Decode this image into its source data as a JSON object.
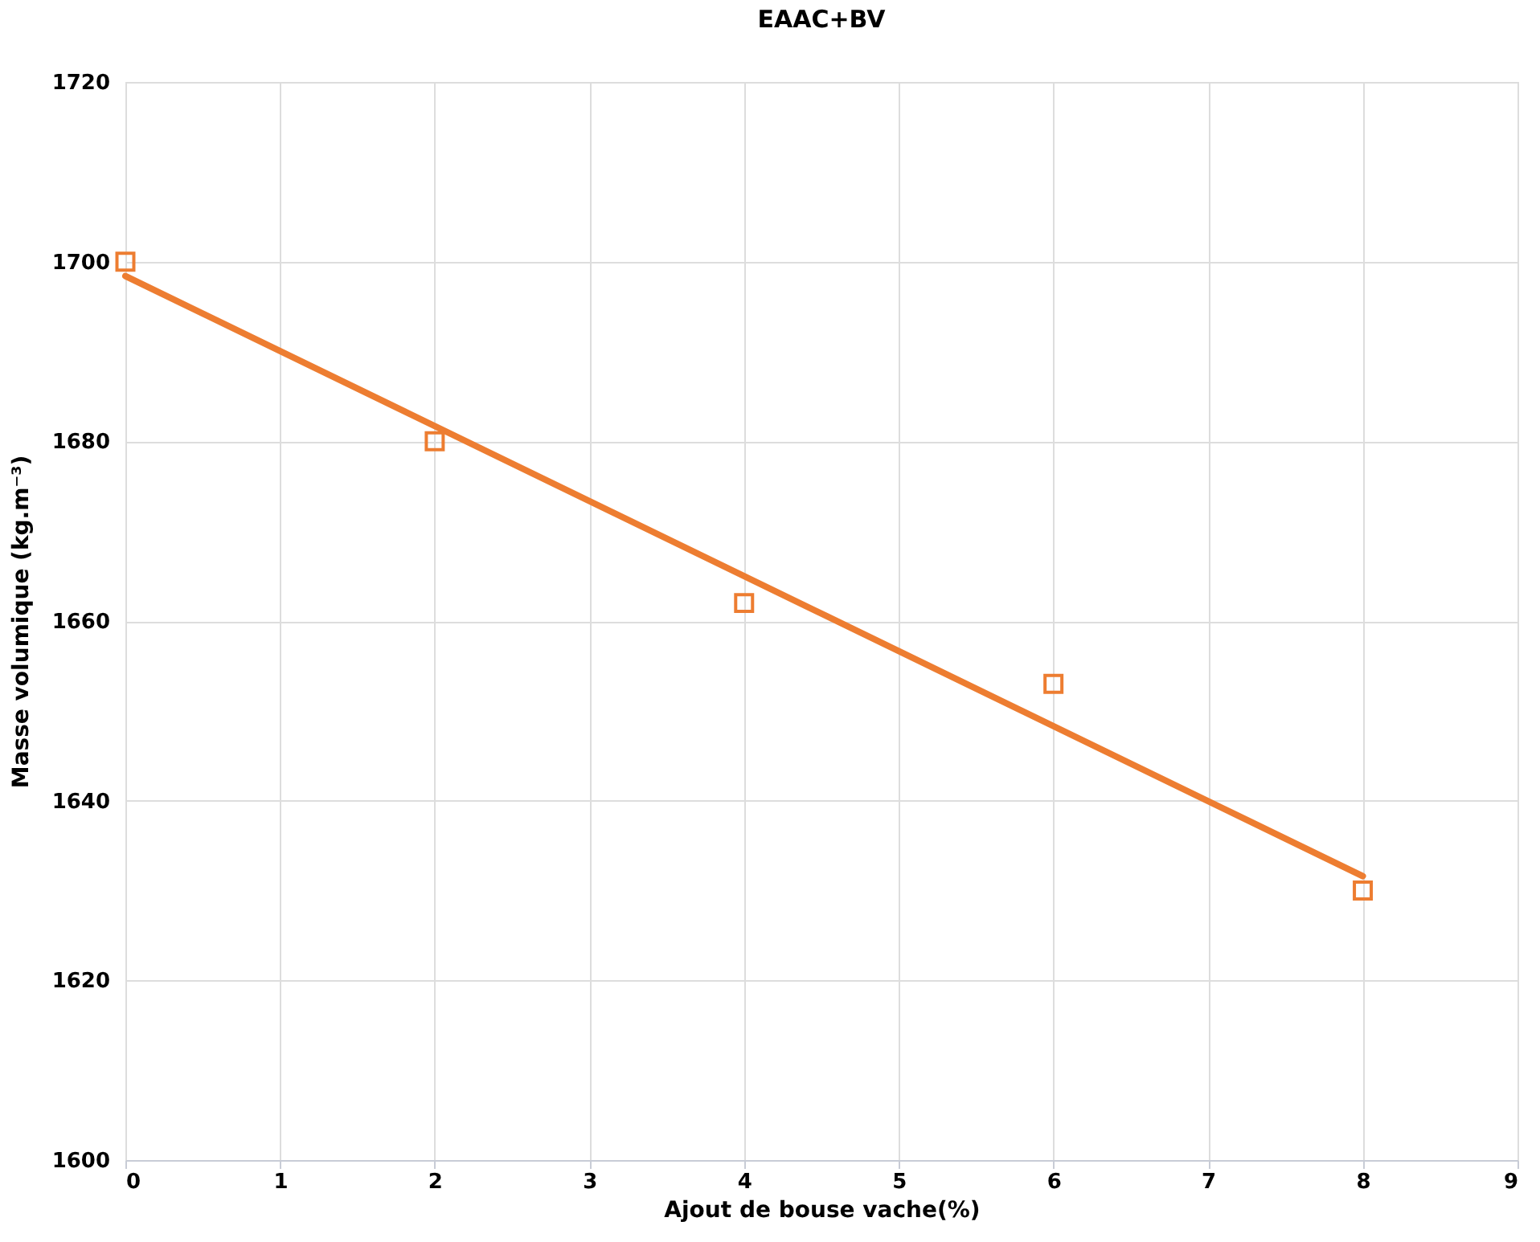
{
  "chart_data": {
    "type": "scatter",
    "title": "EAAC+BV",
    "xlabel": "Ajout de bouse vache(%)",
    "ylabel": "Masse volumique (kg.m⁻³)",
    "x": [
      0,
      2,
      4,
      6,
      8
    ],
    "series": [
      {
        "color": "#ed7d31",
        "marker": "square",
        "values": [
          1700,
          1680,
          1662,
          1653,
          1630
        ]
      },
      {
        "type": "line",
        "color": "#ed7d31",
        "marker": "none",
        "line_style": "solid",
        "x": [
          0,
          8
        ],
        "values": [
          1698.4,
          1631.6
        ]
      }
    ],
    "xlim": [
      0,
      9
    ],
    "xticks": [
      0,
      1,
      2,
      3,
      4,
      5,
      6,
      7,
      8,
      9
    ],
    "ylim": [
      1600,
      1720
    ],
    "yticks": [
      1600,
      1620,
      1640,
      1660,
      1680,
      1700,
      1720
    ],
    "grid": true
  }
}
